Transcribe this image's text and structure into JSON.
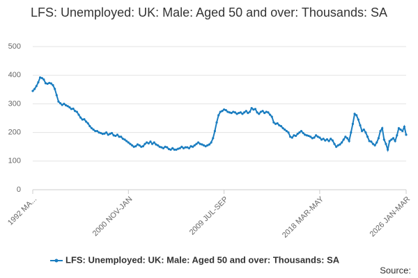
{
  "chart_data": {
    "type": "line",
    "title": "LFS: Unemployed: UK: Male: Aged 50 and over: Thousands: SA",
    "source": "Source:",
    "categories": [
      "1992 MA...",
      null,
      null,
      null,
      null,
      null,
      null,
      null,
      null,
      null,
      null,
      null,
      null,
      null,
      null,
      null,
      null,
      null,
      null,
      null,
      null,
      null,
      null,
      null,
      null,
      null,
      null,
      null,
      null,
      null,
      null,
      null,
      null,
      null,
      null,
      null,
      null,
      null,
      null,
      null,
      null,
      null,
      null,
      null,
      null,
      null,
      null,
      null,
      null,
      null,
      null,
      null,
      "2000 NOV-JAN",
      null,
      null,
      null,
      null,
      null,
      null,
      null,
      null,
      null,
      null,
      null,
      null,
      null,
      null,
      null,
      null,
      null,
      null,
      null,
      null,
      null,
      null,
      null,
      null,
      null,
      null,
      null,
      null,
      null,
      null,
      null,
      null,
      null,
      null,
      null,
      null,
      null,
      null,
      null,
      null,
      null,
      null,
      null,
      null,
      null,
      null,
      null,
      null,
      null,
      null,
      null,
      "2009 JUL-SEP",
      null,
      null,
      null,
      null,
      null,
      null,
      null,
      null,
      null,
      null,
      null,
      null,
      null,
      null,
      null,
      null,
      null,
      null,
      null,
      null,
      null,
      null,
      null,
      null,
      null,
      null,
      null,
      null,
      null,
      null,
      null,
      null,
      null,
      null,
      null,
      null,
      null,
      null,
      null,
      null,
      null,
      null,
      null,
      null,
      null,
      null,
      null,
      null,
      null,
      null,
      null,
      "2018 MAR-MAY",
      null,
      null,
      null,
      null,
      null,
      null,
      null,
      null,
      null,
      null,
      null,
      null,
      null,
      null,
      null,
      null,
      null,
      null,
      null,
      null,
      null,
      null,
      null,
      null,
      null,
      null,
      null,
      null,
      null,
      null,
      null,
      null,
      null,
      null,
      null,
      null,
      null,
      null,
      null,
      null,
      null,
      null,
      null,
      null,
      null,
      null,
      "2026 JAN-MAR"
    ],
    "series": [
      {
        "name": "LFS: Unemployed: UK: Male: Aged 50 and over: Thousands: SA",
        "color": "#1a7dc0",
        "values": [
          345,
          352,
          362,
          375,
          392,
          390,
          385,
          372,
          370,
          373,
          371,
          365,
          352,
          330,
          308,
          302,
          296,
          300,
          295,
          292,
          288,
          282,
          283,
          275,
          272,
          262,
          252,
          245,
          246,
          238,
          232,
          222,
          215,
          210,
          205,
          205,
          200,
          198,
          195,
          196,
          200,
          192,
          195,
          198,
          190,
          188,
          192,
          185,
          185,
          178,
          175,
          170,
          165,
          160,
          155,
          150,
          152,
          158,
          155,
          150,
          152,
          160,
          165,
          162,
          168,
          160,
          165,
          158,
          155,
          150,
          148,
          145,
          150,
          148,
          142,
          140,
          145,
          140,
          140,
          143,
          145,
          150,
          145,
          148,
          148,
          145,
          152,
          150,
          155,
          160,
          165,
          160,
          158,
          155,
          152,
          155,
          158,
          165,
          180,
          205,
          235,
          260,
          272,
          275,
          280,
          278,
          272,
          270,
          268,
          272,
          270,
          265,
          268,
          270,
          265,
          270,
          275,
          268,
          272,
          285,
          280,
          282,
          270,
          265,
          272,
          275,
          268,
          272,
          270,
          262,
          255,
          235,
          230,
          232,
          225,
          222,
          215,
          210,
          205,
          200,
          185,
          182,
          190,
          188,
          195,
          200,
          205,
          198,
          192,
          190,
          188,
          185,
          180,
          182,
          190,
          185,
          182,
          175,
          178,
          172,
          176,
          170,
          178,
          172,
          160,
          150,
          155,
          158,
          165,
          175,
          185,
          180,
          170,
          200,
          230,
          265,
          260,
          245,
          225,
          205,
          210,
          200,
          185,
          170,
          168,
          160,
          155,
          165,
          180,
          205,
          215,
          175,
          160,
          140,
          170,
          175,
          180,
          170,
          190,
          215,
          210,
          205,
          220,
          192
        ]
      }
    ],
    "ylim": [
      0,
      500
    ],
    "yticks": [
      0,
      100,
      200,
      300,
      400,
      500
    ],
    "grid": true
  }
}
